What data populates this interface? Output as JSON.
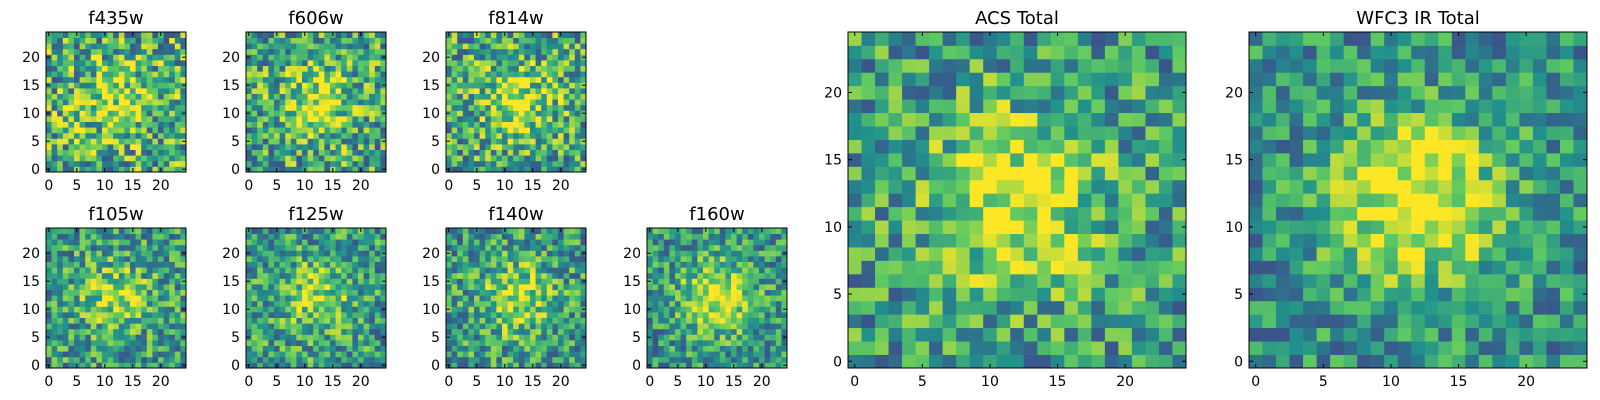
{
  "chart_data": [
    {
      "type": "heatmap",
      "title": "f435w",
      "grid_size": 25,
      "xticks": [
        "0",
        "5",
        "10",
        "15",
        "20"
      ],
      "yticks": [
        "0",
        "5",
        "10",
        "15",
        "20"
      ],
      "seed": 11,
      "blob": 0.25,
      "noise": 0.75
    },
    {
      "type": "heatmap",
      "title": "f606w",
      "grid_size": 25,
      "xticks": [
        "0",
        "5",
        "10",
        "15",
        "20"
      ],
      "yticks": [
        "0",
        "5",
        "10",
        "15",
        "20"
      ],
      "seed": 23,
      "blob": 0.35,
      "noise": 0.7
    },
    {
      "type": "heatmap",
      "title": "f814w",
      "grid_size": 25,
      "xticks": [
        "0",
        "5",
        "10",
        "15",
        "20"
      ],
      "yticks": [
        "0",
        "5",
        "10",
        "15",
        "20"
      ],
      "seed": 37,
      "blob": 0.35,
      "noise": 0.7
    },
    {
      "type": "heatmap",
      "title": "f105w",
      "grid_size": 25,
      "xticks": [
        "0",
        "5",
        "10",
        "15",
        "20"
      ],
      "yticks": [
        "0",
        "5",
        "10",
        "15",
        "20"
      ],
      "seed": 41,
      "blob": 0.3,
      "noise": 0.6
    },
    {
      "type": "heatmap",
      "title": "f125w",
      "grid_size": 25,
      "xticks": [
        "0",
        "5",
        "10",
        "15",
        "20"
      ],
      "yticks": [
        "0",
        "5",
        "10",
        "15",
        "20"
      ],
      "seed": 53,
      "blob": 0.3,
      "noise": 0.6
    },
    {
      "type": "heatmap",
      "title": "f140w",
      "grid_size": 25,
      "xticks": [
        "0",
        "5",
        "10",
        "15",
        "20"
      ],
      "yticks": [
        "0",
        "5",
        "10",
        "15",
        "20"
      ],
      "seed": 67,
      "blob": 0.35,
      "noise": 0.6
    },
    {
      "type": "heatmap",
      "title": "f160w",
      "grid_size": 25,
      "xticks": [
        "0",
        "5",
        "10",
        "15",
        "20"
      ],
      "yticks": [
        "0",
        "5",
        "10",
        "15",
        "20"
      ],
      "seed": 79,
      "blob": 0.45,
      "noise": 0.55
    },
    {
      "type": "heatmap",
      "title": "ACS Total",
      "grid_size": 25,
      "xticks": [
        "0",
        "5",
        "10",
        "15",
        "20"
      ],
      "yticks": [
        "0",
        "5",
        "10",
        "15",
        "20"
      ],
      "seed": 97,
      "blob": 0.45,
      "noise": 0.6
    },
    {
      "type": "heatmap",
      "title": "WFC3 IR Total",
      "grid_size": 25,
      "xticks": [
        "0",
        "5",
        "10",
        "15",
        "20"
      ],
      "yticks": [
        "0",
        "5",
        "10",
        "15",
        "20"
      ],
      "seed": 113,
      "blob": 0.55,
      "noise": 0.5
    }
  ],
  "colormap": [
    "#440154",
    "#3b528b",
    "#21918c",
    "#5ec962",
    "#fde725"
  ]
}
